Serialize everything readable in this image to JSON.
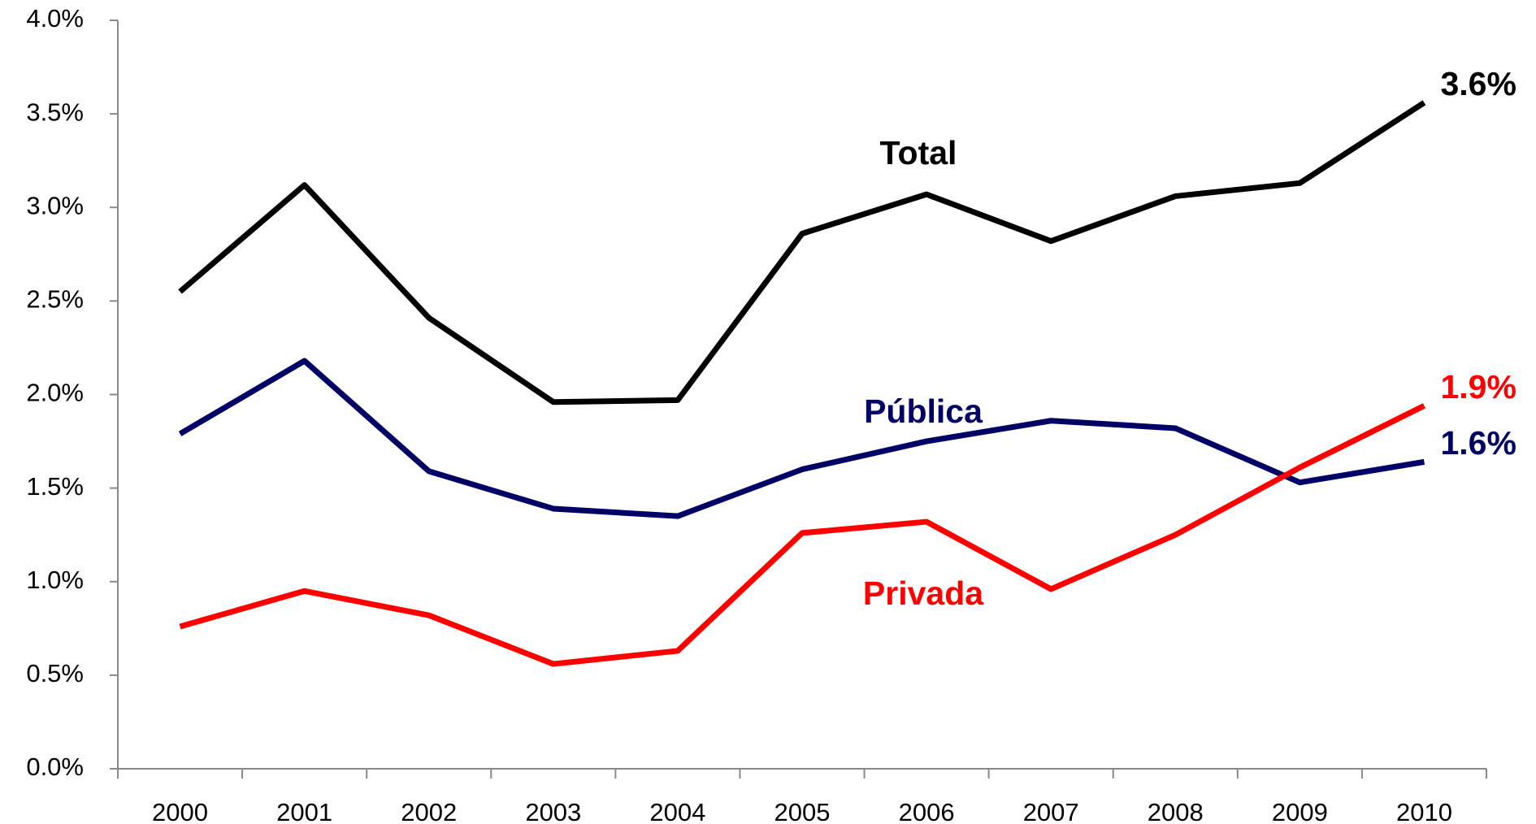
{
  "chart_data": {
    "type": "line",
    "categories": [
      "2000",
      "2001",
      "2002",
      "2003",
      "2004",
      "2005",
      "2006",
      "2007",
      "2008",
      "2009",
      "2010"
    ],
    "series": [
      {
        "name": "Total",
        "color": "#000000",
        "values": [
          2.55,
          3.12,
          2.41,
          1.96,
          1.97,
          2.86,
          3.07,
          2.82,
          3.06,
          3.13,
          3.56
        ],
        "value_labels": [
          null,
          null,
          null,
          null,
          null,
          null,
          null,
          null,
          null,
          null,
          "3.6%"
        ]
      },
      {
        "name": "Pública",
        "color": "#000066",
        "values": [
          1.79,
          2.18,
          1.59,
          1.39,
          1.35,
          1.6,
          1.75,
          1.86,
          1.82,
          1.53,
          1.64
        ],
        "value_labels": [
          null,
          null,
          null,
          null,
          null,
          null,
          null,
          null,
          null,
          null,
          "1.6%"
        ]
      },
      {
        "name": "Privada",
        "color": "#ff0000",
        "values": [
          0.76,
          0.95,
          0.82,
          0.56,
          0.63,
          1.26,
          1.32,
          0.96,
          1.25,
          1.61,
          1.94
        ],
        "value_labels": [
          null,
          null,
          null,
          null,
          null,
          null,
          null,
          null,
          null,
          null,
          "1.9%"
        ]
      }
    ],
    "ylim": [
      0,
      4
    ],
    "yticks": [
      {
        "value": 0,
        "label": "0.0%"
      },
      {
        "value": 0.5,
        "label": "0.5%"
      },
      {
        "value": 1,
        "label": "1.0%"
      },
      {
        "value": 1.5,
        "label": "1.5%"
      },
      {
        "value": 2,
        "label": "2.0%"
      },
      {
        "value": 2.5,
        "label": "2.5%"
      },
      {
        "value": 3,
        "label": "3.0%"
      },
      {
        "value": 3.5,
        "label": "3.5%"
      },
      {
        "value": 4,
        "label": "4.0%"
      }
    ],
    "grid": false
  }
}
